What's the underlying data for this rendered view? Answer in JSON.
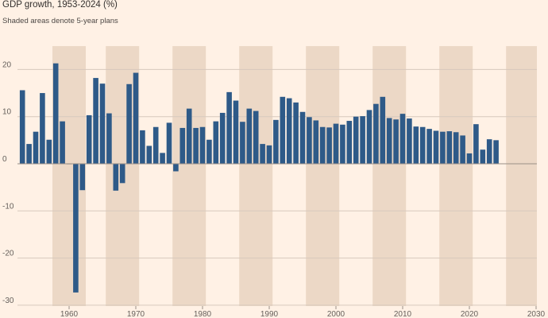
{
  "chart_data": {
    "type": "bar",
    "title": "GDP growth, 1953-2024 (%)",
    "subtitle": "Shaded areas denote 5-year plans",
    "xlabel": "",
    "ylabel": "",
    "xlim": [
      1952,
      2031
    ],
    "ylim": [
      -30,
      25
    ],
    "y_ticks": [
      20,
      10,
      0,
      -10,
      -20,
      -30
    ],
    "x_ticks": [
      1960,
      1970,
      1980,
      1990,
      2000,
      2010,
      2020,
      2030
    ],
    "grid": true,
    "bar_color": "#2e5a88",
    "shade_color": "#ecd8c6",
    "shaded_periods": [
      [
        1958,
        1962
      ],
      [
        1966,
        1970
      ],
      [
        1976,
        1980
      ],
      [
        1986,
        1990
      ],
      [
        1996,
        2000
      ],
      [
        2006,
        2010
      ],
      [
        2016,
        2020
      ],
      [
        2026,
        2030
      ]
    ],
    "x": [
      1953,
      1954,
      1955,
      1956,
      1957,
      1958,
      1959,
      1960,
      1961,
      1962,
      1963,
      1964,
      1965,
      1966,
      1967,
      1968,
      1969,
      1970,
      1971,
      1972,
      1973,
      1974,
      1975,
      1976,
      1977,
      1978,
      1979,
      1980,
      1981,
      1982,
      1983,
      1984,
      1985,
      1986,
      1987,
      1988,
      1989,
      1990,
      1991,
      1992,
      1993,
      1994,
      1995,
      1996,
      1997,
      1998,
      1999,
      2000,
      2001,
      2002,
      2003,
      2004,
      2005,
      2006,
      2007,
      2008,
      2009,
      2010,
      2011,
      2012,
      2013,
      2014,
      2015,
      2016,
      2017,
      2018,
      2019,
      2020,
      2021,
      2022,
      2023,
      2024
    ],
    "values": [
      15.6,
      4.2,
      6.8,
      15.0,
      5.1,
      21.3,
      9.0,
      0.0,
      -27.3,
      -5.6,
      10.3,
      18.2,
      17.0,
      10.7,
      -5.7,
      -4.1,
      16.9,
      19.3,
      7.1,
      3.8,
      7.8,
      2.3,
      8.7,
      -1.6,
      7.6,
      11.7,
      7.6,
      7.8,
      5.1,
      9.0,
      10.8,
      15.2,
      13.4,
      8.9,
      11.7,
      11.2,
      4.2,
      3.9,
      9.3,
      14.2,
      13.9,
      13.0,
      11.0,
      9.9,
      9.2,
      7.8,
      7.7,
      8.5,
      8.3,
      9.1,
      10.0,
      10.1,
      11.4,
      12.7,
      14.2,
      9.7,
      9.4,
      10.6,
      9.6,
      7.9,
      7.8,
      7.4,
      7.0,
      6.8,
      6.9,
      6.7,
      6.0,
      2.2,
      8.4,
      3.0,
      5.2,
      5.0
    ]
  }
}
